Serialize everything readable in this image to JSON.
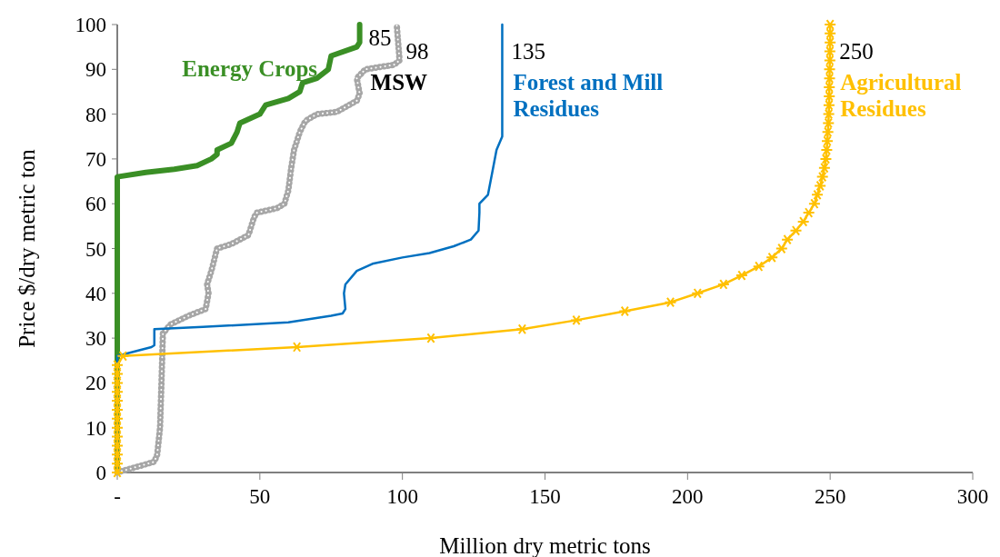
{
  "chart_data": {
    "type": "line",
    "xlabel": "Million dry metric tons",
    "ylabel": "Price $/dry metric ton",
    "xlim": [
      0,
      300
    ],
    "xticks": [
      {
        "value": 0,
        "label": "-"
      },
      50,
      100,
      150,
      200,
      250,
      300
    ],
    "ylim": [
      0,
      100
    ],
    "yticks": [
      0,
      10,
      20,
      30,
      40,
      50,
      60,
      70,
      80,
      90,
      100
    ],
    "grid": false,
    "series": [
      {
        "name": "Energy Crops",
        "color": "#3a8f25",
        "marker": "none",
        "line_style": "solid",
        "x": [
          0,
          0,
          10,
          20,
          28,
          33,
          35,
          35,
          40,
          42,
          43,
          50,
          52,
          60,
          64,
          65,
          70,
          74,
          75,
          84,
          85,
          85
        ],
        "values": [
          0,
          66,
          67,
          67.7,
          68.5,
          70,
          71,
          72,
          73.5,
          76,
          78,
          80,
          82,
          83.5,
          85,
          87,
          88,
          90,
          93,
          95,
          96,
          100
        ]
      },
      {
        "name": "MSW",
        "color": "#a6a6a6",
        "marker": "none",
        "line_style": "dotted",
        "x": [
          0,
          13,
          14,
          15,
          15.5,
          16,
          18.5,
          25,
          31,
          32,
          31.5,
          33,
          35,
          40,
          46,
          48,
          49,
          56,
          58.6,
          60,
          61,
          62,
          64,
          66,
          70,
          77,
          84,
          85,
          84,
          87,
          97,
          99,
          98
        ],
        "values": [
          0,
          2.4,
          4,
          10,
          20,
          31,
          33,
          35,
          36.5,
          40,
          42,
          45,
          50,
          51,
          53,
          57,
          58,
          59,
          60,
          63,
          68,
          72,
          76,
          78.5,
          80,
          80.5,
          83,
          84.6,
          88,
          90,
          91,
          92,
          100
        ]
      },
      {
        "name": "Forest and Mill Residues",
        "color": "#0070c0",
        "marker": "none",
        "line_style": "solid",
        "x": [
          0,
          0,
          12,
          13,
          13,
          30,
          60,
          75,
          79,
          80,
          79.5,
          80,
          84,
          89.5,
          100,
          109.5,
          118,
          124,
          126.7,
          127,
          127,
          130,
          131.5,
          133,
          135,
          135
        ],
        "values": [
          0,
          26,
          28,
          28.4,
          32,
          32.5,
          33.5,
          35,
          35.5,
          36.5,
          40,
          42,
          45,
          46.6,
          48,
          49,
          50.5,
          52,
          54,
          58,
          60,
          62,
          67,
          72,
          75,
          100
        ]
      },
      {
        "name": "Agricultural Residues",
        "color": "#ffc000",
        "marker": "cross",
        "line_style": "solid",
        "x": [
          0,
          0,
          0,
          0,
          0,
          0,
          0,
          0,
          0,
          0,
          0,
          0,
          0,
          2,
          63,
          110,
          142,
          161,
          178,
          194,
          203.5,
          212.6,
          219,
          225,
          229.6,
          233,
          235,
          238,
          240.6,
          242.5,
          244.5,
          245.5,
          246.5,
          247.3,
          248,
          248.5,
          248.8,
          249,
          249.2,
          249.4,
          249.5,
          249.6,
          249.7,
          249.7,
          249.8,
          249.8,
          249.9,
          249.9,
          250,
          250,
          250
        ],
        "values": [
          0,
          2,
          4,
          6,
          8,
          10,
          12,
          14,
          16,
          18,
          20,
          22,
          24,
          26,
          28,
          30,
          32,
          34,
          36,
          38,
          40,
          42,
          44,
          46,
          48,
          50,
          52,
          54,
          56,
          58,
          60,
          62,
          64,
          66,
          68,
          70,
          72,
          74,
          76,
          78,
          80,
          82,
          84,
          86,
          88,
          90,
          92,
          94,
          96,
          98,
          100
        ]
      }
    ],
    "annotations": [
      {
        "text": "85",
        "x": 85,
        "y": 97
      },
      {
        "text": "98",
        "x": 98,
        "y": 94
      },
      {
        "text": "135",
        "x": 135,
        "y": 94
      },
      {
        "text": "250",
        "x": 250,
        "y": 94
      }
    ]
  }
}
